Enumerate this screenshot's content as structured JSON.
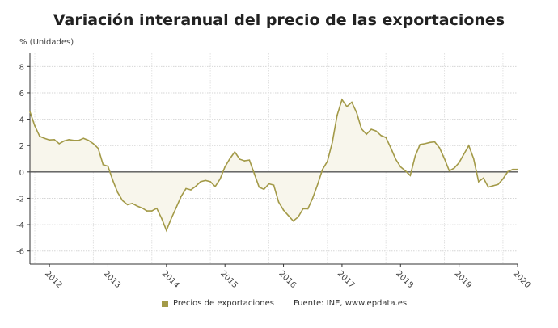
{
  "chart_data": {
    "type": "area",
    "title": "Variación interanual del precio de las exportaciones",
    "ylabel": "% (Unidades)",
    "ylim": [
      -7,
      9
    ],
    "yticks": [
      8,
      6,
      4,
      2,
      0,
      -2,
      -4,
      -6
    ],
    "xtick_labels": [
      "2012",
      "2013",
      "2014",
      "2015",
      "2016",
      "2017",
      "2018",
      "2019",
      "2020"
    ],
    "grid": true,
    "legend_position": "bottom",
    "source": "Fuente: INE, www.epdata.es",
    "colors": {
      "line": "#a39a48",
      "fill": "#f8f6ec",
      "zero": "#555555"
    },
    "series": [
      {
        "name": "Precios de exportaciones",
        "start": "2011-09",
        "frequency": "monthly",
        "values": [
          4.57,
          3.5,
          2.7,
          2.55,
          2.43,
          2.45,
          2.14,
          2.35,
          2.45,
          2.39,
          2.39,
          2.55,
          2.4,
          2.14,
          1.79,
          0.55,
          0.43,
          -0.64,
          -1.56,
          -2.18,
          -2.49,
          -2.39,
          -2.59,
          -2.74,
          -2.96,
          -2.96,
          -2.76,
          -3.52,
          -4.44,
          -3.52,
          -2.7,
          -1.87,
          -1.26,
          -1.36,
          -1.09,
          -0.74,
          -0.64,
          -0.74,
          -1.11,
          -0.53,
          0.39,
          1.0,
          1.52,
          0.97,
          0.84,
          0.9,
          -0.12,
          -1.15,
          -1.32,
          -0.9,
          -1.0,
          -2.28,
          -2.9,
          -3.31,
          -3.72,
          -3.42,
          -2.8,
          -2.8,
          -1.98,
          -0.95,
          0.19,
          0.8,
          2.24,
          4.3,
          5.49,
          4.96,
          5.29,
          4.5,
          3.27,
          2.86,
          3.23,
          3.1,
          2.76,
          2.61,
          1.83,
          0.97,
          0.39,
          0.08,
          -0.27,
          1.21,
          2.08,
          2.14,
          2.24,
          2.28,
          1.83,
          1.0,
          0.08,
          0.29,
          0.7,
          1.36,
          2.0,
          1.0,
          -0.74,
          -0.47,
          -1.15,
          -1.05,
          -0.95,
          -0.53,
          0.02,
          0.19,
          0.19
        ]
      }
    ]
  }
}
